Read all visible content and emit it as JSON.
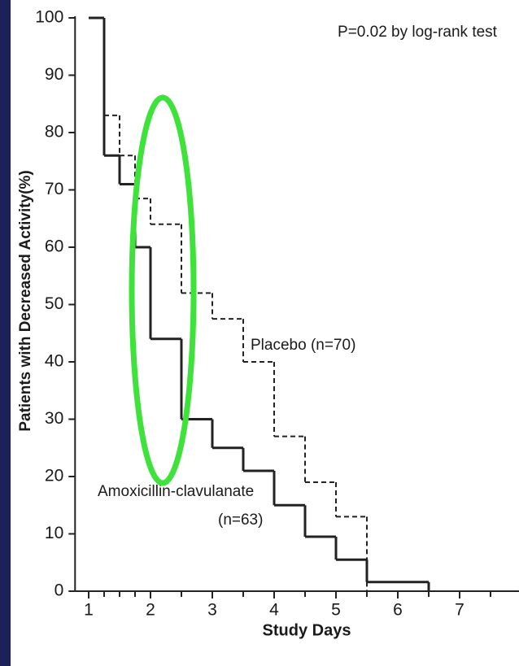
{
  "chart_data": {
    "type": "step",
    "annotation": "P=0.02 by log-rank test",
    "x_label": "Study Days",
    "y_label": "Patients with Decreased Activity(%)",
    "xlim": [
      0.78,
      7.96
    ],
    "ylim": [
      0,
      100
    ],
    "xticks": [
      1,
      2,
      3,
      4,
      5,
      6,
      7
    ],
    "xminorticks": [
      1.25,
      1.5,
      1.75,
      2.5,
      3.5,
      4.5,
      5.5,
      6.5,
      7.5
    ],
    "yticks": [
      0,
      10,
      20,
      30,
      40,
      50,
      60,
      70,
      80,
      90,
      100
    ],
    "series": [
      {
        "name": "Placebo (n=70)",
        "color": "#222222",
        "dashed": true,
        "x": [
          1,
          1.25,
          1.5,
          1.75,
          2,
          2.5,
          3,
          3.5,
          4,
          4.5,
          5,
          5.5
        ],
        "values": [
          100,
          83,
          76,
          68.5,
          64,
          52,
          47.5,
          40,
          27,
          19,
          13,
          0
        ]
      },
      {
        "name": "Amoxicillin-clavulanate",
        "name_line2": "(n=63)",
        "color": "#222222",
        "dashed": false,
        "x": [
          1,
          1.25,
          1.5,
          1.75,
          2,
          2.5,
          3,
          3.5,
          4,
          4.5,
          5,
          5.5,
          6.5
        ],
        "values": [
          100,
          76,
          71,
          60,
          44,
          30,
          25,
          21,
          15,
          9.5,
          5.5,
          1.6,
          0
        ]
      }
    ]
  }
}
